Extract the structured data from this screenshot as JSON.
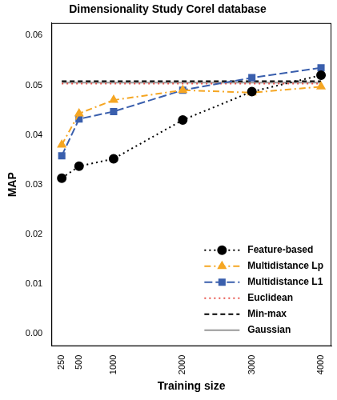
{
  "chart_data": {
    "type": "line",
    "title": "Dimensionality Study Corel database",
    "x_label": "Training size",
    "y_label": "MAP",
    "x": [
      250,
      500,
      1000,
      2000,
      3000,
      4000
    ],
    "xlim": [
      100,
      4150
    ],
    "xticks": [
      250,
      500,
      1000,
      2000,
      3000,
      4000
    ],
    "ylim": [
      -0.0025,
      0.0625
    ],
    "yticks": [
      {
        "value": 0,
        "label": "0.00"
      },
      {
        "value": 0.01,
        "label": "0.01"
      },
      {
        "value": 0.02,
        "label": "0.02"
      },
      {
        "value": 0.03,
        "label": "0.03"
      },
      {
        "value": 0.04,
        "label": "0.04"
      },
      {
        "value": 0.05,
        "label": "0.05"
      },
      {
        "value": 0.06,
        "label": "0.06"
      }
    ],
    "grid": false,
    "legend": "bottom-right",
    "series": [
      {
        "name": "Feature-based",
        "color": "#000000",
        "marker": "circle",
        "line_style": "dotted",
        "values": [
          0.0313,
          0.0337,
          0.0352,
          0.043,
          0.0487,
          0.052
        ]
      },
      {
        "name": "Multidistance Lp",
        "color": "#f5a623",
        "marker": "triangle",
        "line_style": "dashdot",
        "values": [
          0.038,
          0.0443,
          0.047,
          0.049,
          0.0485,
          0.0497
        ]
      },
      {
        "name": "Multidistance L1",
        "color": "#3a5fad",
        "marker": "square",
        "line_style": "longdash",
        "values": [
          0.0358,
          0.0432,
          0.0447,
          0.049,
          0.0515,
          0.0535
        ]
      },
      {
        "name": "Euclidean",
        "color": "#e8554e",
        "marker": "none",
        "line_style": "dotted",
        "values": [
          0.0503,
          0.0503,
          0.0503,
          0.0503,
          0.0503,
          0.0503
        ]
      },
      {
        "name": "Min-max",
        "color": "#000000",
        "marker": "none",
        "line_style": "dashed",
        "values": [
          0.0508,
          0.0508,
          0.0508,
          0.0508,
          0.0508,
          0.0508
        ]
      },
      {
        "name": "Gaussian",
        "color": "#999999",
        "marker": "none",
        "line_style": "solid",
        "values": [
          0.0505,
          0.0505,
          0.0505,
          0.0505,
          0.0505,
          0.0505
        ]
      }
    ]
  }
}
